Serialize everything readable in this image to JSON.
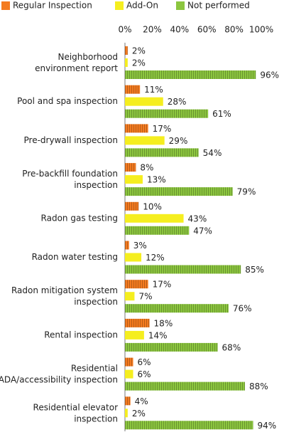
{
  "chart_data": {
    "type": "bar",
    "orientation": "horizontal",
    "categories": [
      "Neighborhood environment report",
      "Pool and spa inspection",
      "Pre-drywall inspection",
      "Pre-backfill foundation inspection",
      "Radon gas testing",
      "Radon water testing",
      "Radon mitigation system inspection",
      "Rental inspection",
      "Residential ADA/accessibility inspection",
      "Residential elevator inspection"
    ],
    "series": [
      {
        "name": "Regular Inspection",
        "color": "#f47b20",
        "values": [
          2,
          11,
          17,
          8,
          10,
          3,
          17,
          18,
          6,
          4
        ],
        "value_labels": [
          "2%",
          "11%",
          "17%",
          "8%",
          "10%",
          "3%",
          "17%",
          "18%",
          "6%",
          "4%"
        ]
      },
      {
        "name": "Add-On",
        "color": "#f5ee1f",
        "values": [
          2,
          28,
          29,
          13,
          43,
          12,
          7,
          14,
          6,
          2
        ],
        "value_labels": [
          "2%",
          "28%",
          "29%",
          "13%",
          "43%",
          "12%",
          "7%",
          "14%",
          "6%",
          "2%"
        ]
      },
      {
        "name": "Not performed",
        "color": "#8cc63f",
        "values": [
          96,
          61,
          54,
          79,
          47,
          85,
          76,
          68,
          88,
          94
        ],
        "value_labels": [
          "96%",
          "61%",
          "54%",
          "79%",
          "47%",
          "85%",
          "76%",
          "68%",
          "88%",
          "94%"
        ]
      }
    ],
    "xlim": [
      0,
      100
    ],
    "xticks": [
      {
        "value": 0,
        "label": "0%"
      },
      {
        "value": 20,
        "label": "20%"
      },
      {
        "value": 40,
        "label": "40%"
      },
      {
        "value": 60,
        "label": "60%"
      },
      {
        "value": 80,
        "label": "80%"
      },
      {
        "value": 100,
        "label": "100%"
      }
    ],
    "legend": "top"
  }
}
